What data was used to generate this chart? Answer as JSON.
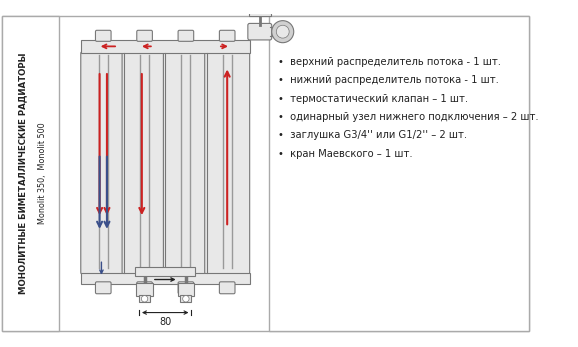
{
  "bg_color": "#ffffff",
  "border_color": "#aaaaaa",
  "left_panel_text1": "МОНОЛИТНЫЕ БИМЕТАЛЛИЧЕСКИЕ РАДИАТОРЫ",
  "left_panel_text2": "Monolit 350,  Monolit 500",
  "bullet_items": [
    "верхний распределитель потока - 1 шт.",
    "нижний распределитель потока - 1 шт.",
    "термостатический клапан – 1 шт.",
    "одинарный узел нижнего подключения – 2 шт.",
    "заглушка G3/4'' или G1/2'' – 2 шт.",
    "кран Маевского – 1 шт."
  ],
  "dim_label": "80",
  "red_color": "#cc2222",
  "blue_color": "#3a4f8a",
  "dark_color": "#222222",
  "section_fill": "#e8e8e8",
  "section_border": "#777777",
  "pipe_color": "#999999"
}
